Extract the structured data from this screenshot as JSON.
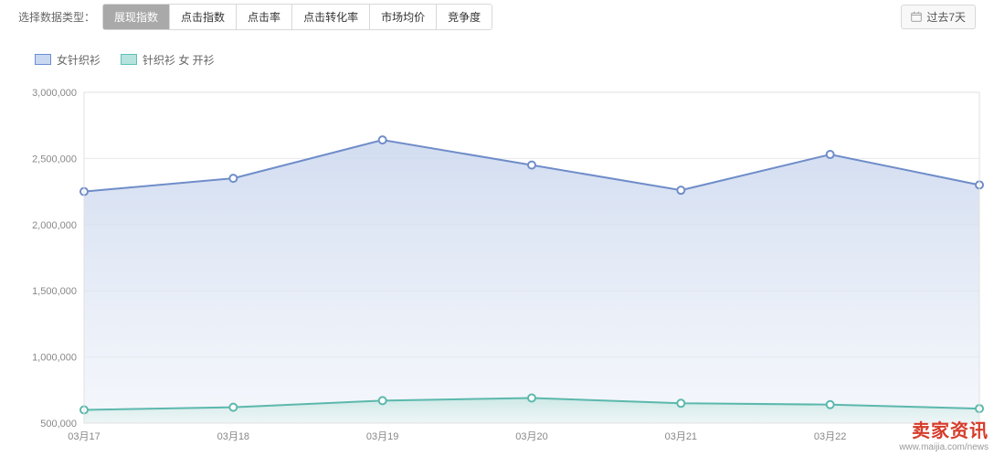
{
  "toolbar": {
    "label": "选择数据类型：",
    "tabs": [
      "展现指数",
      "点击指数",
      "点击率",
      "点击转化率",
      "市场均价",
      "竞争度"
    ],
    "active_tab": 0,
    "date_label": "过去7天"
  },
  "legend": [
    {
      "label": "女针织衫",
      "fill": "#c9d8f0",
      "stroke": "#6b8ed6"
    },
    {
      "label": "针织衫 女 开衫",
      "fill": "#b7e3de",
      "stroke": "#5ec2b7"
    }
  ],
  "chart": {
    "type": "area",
    "background": "#ffffff",
    "grid_color": "#e8e8e8",
    "ylim": [
      500000,
      3000000
    ],
    "ytick_step": 500000,
    "ytick_labels": [
      "500,000",
      "1,000,000",
      "1,500,000",
      "2,000,000",
      "2,500,000",
      "3,000,000"
    ],
    "x_labels": [
      "03月17",
      "03月18",
      "03月19",
      "03月20",
      "03月21",
      "03月22",
      ""
    ],
    "series": [
      {
        "name": "女针织衫",
        "stroke": "#6f8dc9",
        "fill_top": "#cdd9ef",
        "fill_bottom": "#eaeff8",
        "line_width": 2,
        "marker": "circle",
        "marker_size": 4,
        "values": [
          2250000,
          2350000,
          2640000,
          2450000,
          2260000,
          2530000,
          2300000
        ]
      },
      {
        "name": "针织衫 女 开衫",
        "stroke": "#5cb8ad",
        "fill_top": "#c8e7e3",
        "fill_bottom": "#e6f3f1",
        "line_width": 2,
        "marker": "circle",
        "marker_size": 4,
        "values": [
          600000,
          620000,
          670000,
          690000,
          650000,
          640000,
          610000
        ]
      }
    ]
  },
  "watermark": {
    "cn": "卖家资讯",
    "url": "www.maijia.com/news"
  }
}
